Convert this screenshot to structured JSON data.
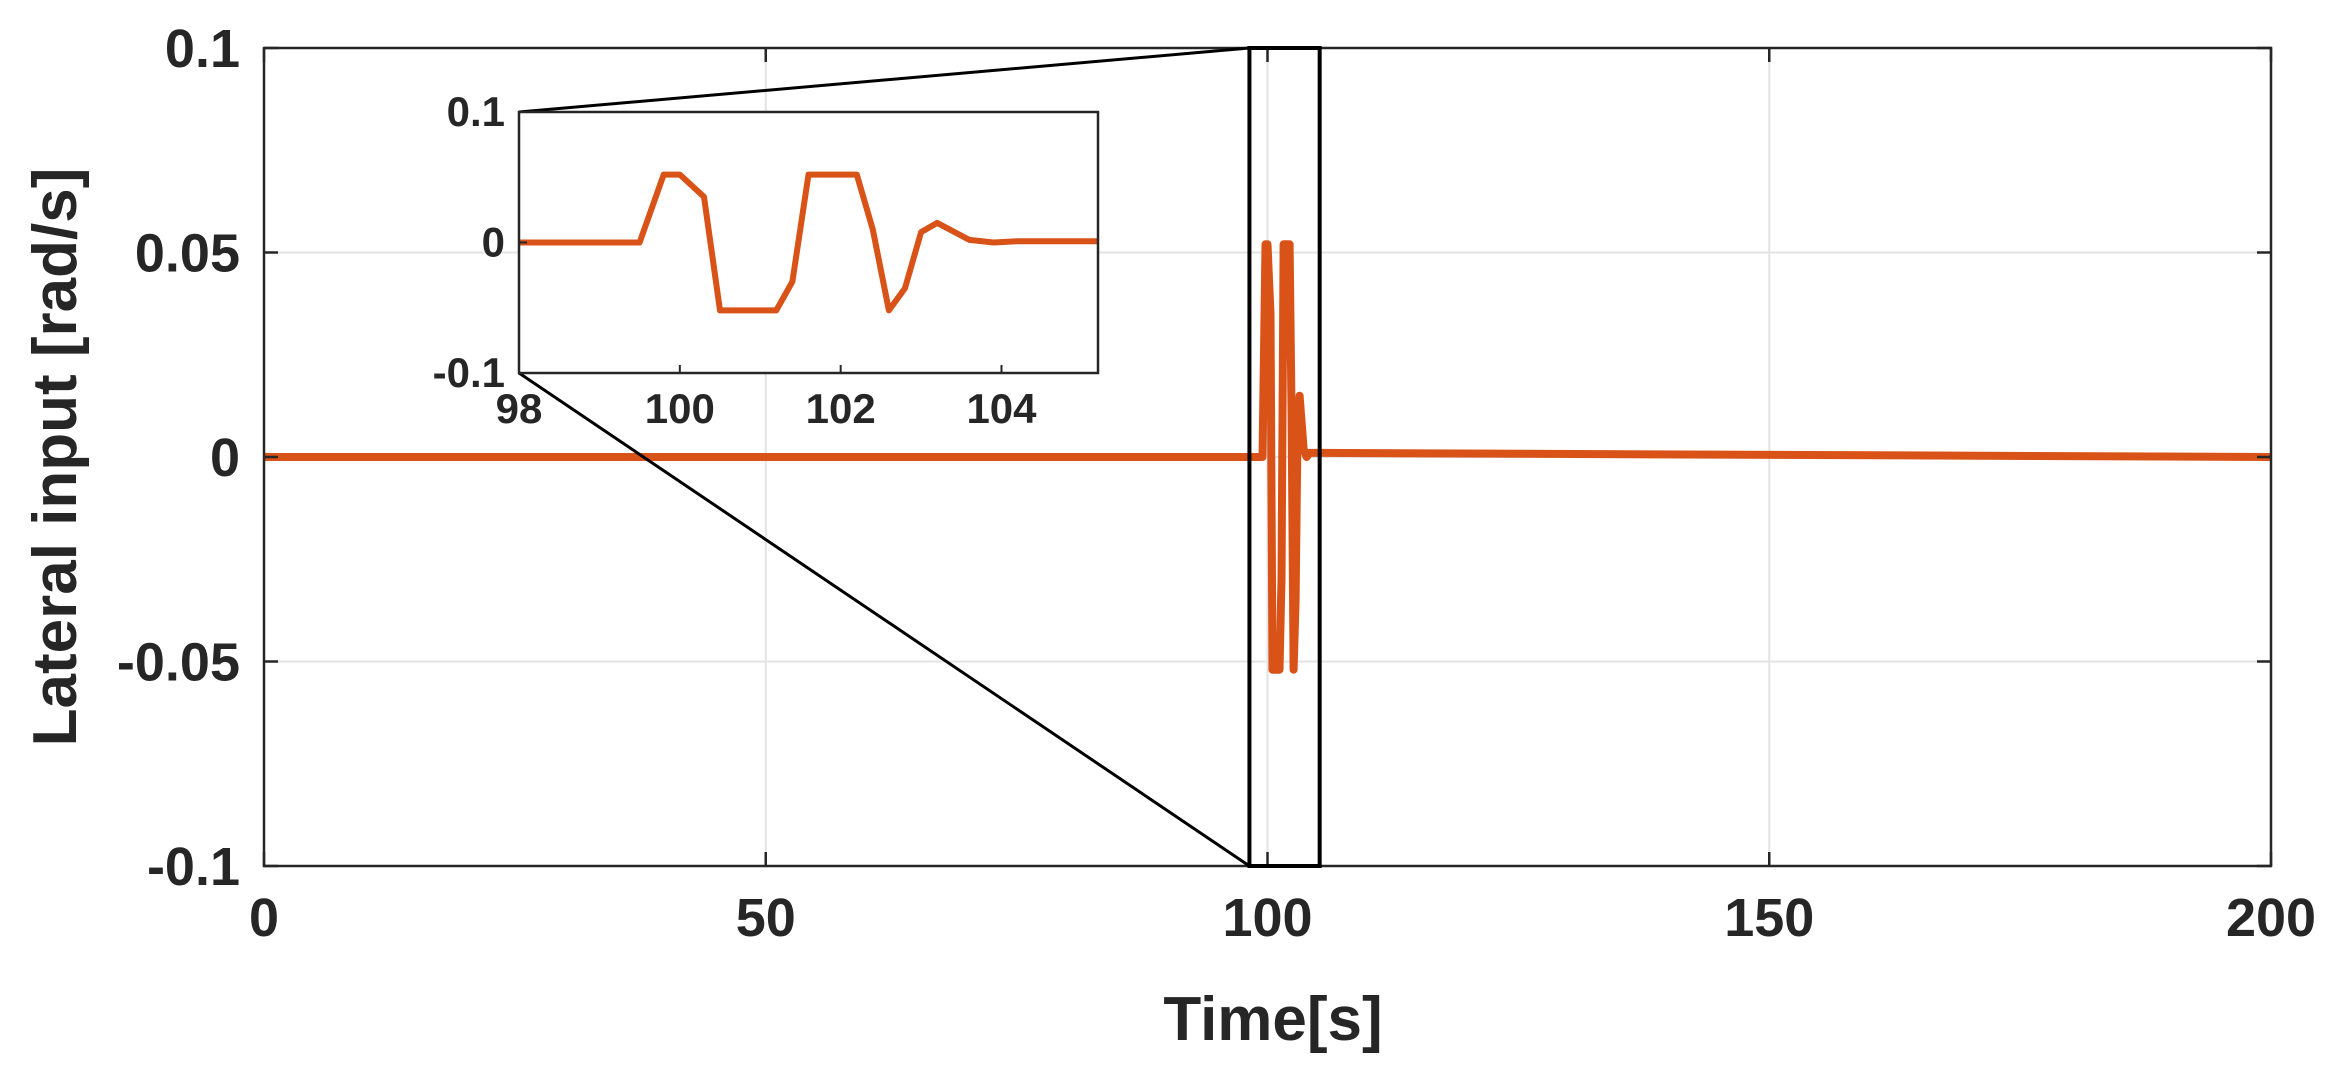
{
  "chart_data": {
    "type": "line",
    "xlabel": "Time[s]",
    "ylabel": "Lateral input [rad/s]",
    "xlim": [
      0,
      200
    ],
    "ylim": [
      -0.1,
      0.1
    ],
    "xticks": [
      0,
      50,
      100,
      150,
      200
    ],
    "xtick_labels": [
      "0",
      "50",
      "100",
      "150",
      "200"
    ],
    "yticks": [
      -0.1,
      -0.05,
      0,
      0.05,
      0.1
    ],
    "ytick_labels": [
      "-0.1",
      "-0.05",
      "0",
      "0.05",
      "0.1"
    ],
    "grid": true,
    "line_color": "#D95319",
    "series": [
      {
        "x": [
          0,
          99.5,
          99.8,
          100.0,
          100.3,
          100.5,
          101.2,
          101.4,
          101.6,
          102.2,
          102.4,
          102.6,
          102.8,
          103.0,
          103.2,
          103.6,
          103.9,
          104.2,
          104.6,
          105.2,
          200
        ],
        "y": [
          0,
          0,
          0.052,
          0.052,
          0.035,
          -0.052,
          -0.052,
          -0.03,
          0.052,
          0.052,
          0.01,
          -0.052,
          -0.035,
          0.008,
          0.015,
          0.002,
          0.0,
          0.001,
          0.001,
          0.001,
          0
        ]
      }
    ],
    "zoom_box": {
      "xlim": [
        98,
        105
      ],
      "ylim": [
        -0.1,
        0.1
      ]
    },
    "inset": {
      "xlim": [
        98,
        105.2
      ],
      "ylim": [
        -0.1,
        0.1
      ],
      "xticks": [
        98,
        100,
        102,
        104
      ],
      "xtick_labels": [
        "98",
        "100",
        "102",
        "104"
      ],
      "yticks": [
        -0.1,
        0,
        0.1
      ],
      "ytick_labels": [
        "-0.1",
        "0",
        "0.1"
      ]
    }
  }
}
